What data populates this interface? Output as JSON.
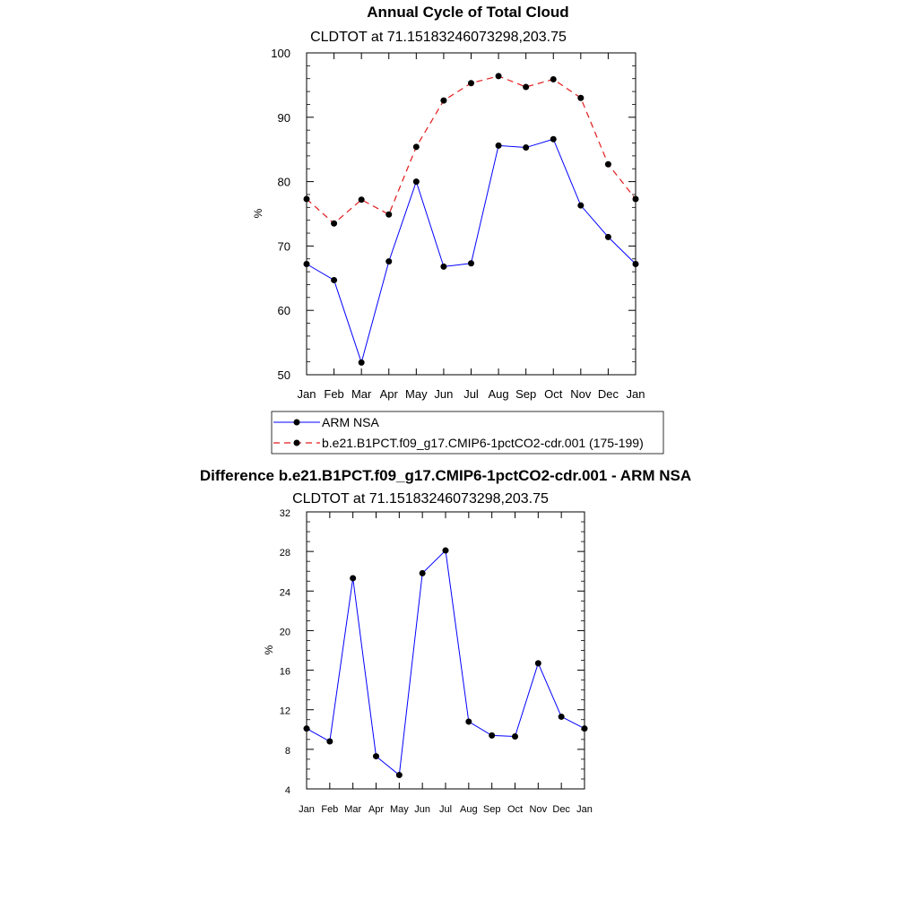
{
  "chart_data": [
    {
      "type": "line",
      "title": "Annual Cycle of Total Cloud",
      "subtitle": "CLDTOT at 71.15183246073298,203.75",
      "ylabel": "%",
      "ylim": [
        50,
        100
      ],
      "yticks": [
        "50",
        "60",
        "70",
        "80",
        "90",
        "100"
      ],
      "categories": [
        "Jan",
        "Feb",
        "Mar",
        "Apr",
        "May",
        "Jun",
        "Jul",
        "Aug",
        "Sep",
        "Oct",
        "Nov",
        "Dec",
        "Jan"
      ],
      "series": [
        {
          "name": "ARM NSA",
          "color": "#0000ff",
          "dash": "solid",
          "values": [
            67.2,
            64.7,
            51.9,
            67.6,
            80.0,
            66.8,
            67.3,
            85.6,
            85.3,
            86.6,
            76.3,
            71.4,
            67.2
          ]
        },
        {
          "name": "b.e21.B1PCT.f09_g17.CMIP6-1pctCO2-cdr.001 (175-199)",
          "color": "#e31a1c",
          "dash": "dashed",
          "values": [
            77.3,
            73.5,
            77.2,
            74.9,
            85.4,
            92.6,
            95.3,
            96.4,
            94.7,
            95.9,
            93.0,
            82.7,
            77.3
          ]
        }
      ],
      "legend": "bottom"
    },
    {
      "type": "line",
      "title": "Difference b.e21.B1PCT.f09_g17.CMIP6-1pctCO2-cdr.001 - ARM NSA",
      "subtitle": "CLDTOT at 71.15183246073298,203.75",
      "ylabel": "%",
      "ylim": [
        4,
        32
      ],
      "yticks": [
        "4",
        "8",
        "12",
        "16",
        "20",
        "24",
        "28",
        "32"
      ],
      "categories": [
        "Jan",
        "Feb",
        "Mar",
        "Apr",
        "May",
        "Jun",
        "Jul",
        "Aug",
        "Sep",
        "Oct",
        "Nov",
        "Dec",
        "Jan"
      ],
      "series": [
        {
          "color": "#0000ff",
          "dash": "solid",
          "values": [
            10.1,
            8.8,
            25.3,
            7.3,
            5.4,
            25.8,
            28.1,
            10.8,
            9.4,
            9.3,
            16.7,
            11.3,
            10.1
          ]
        }
      ]
    }
  ]
}
